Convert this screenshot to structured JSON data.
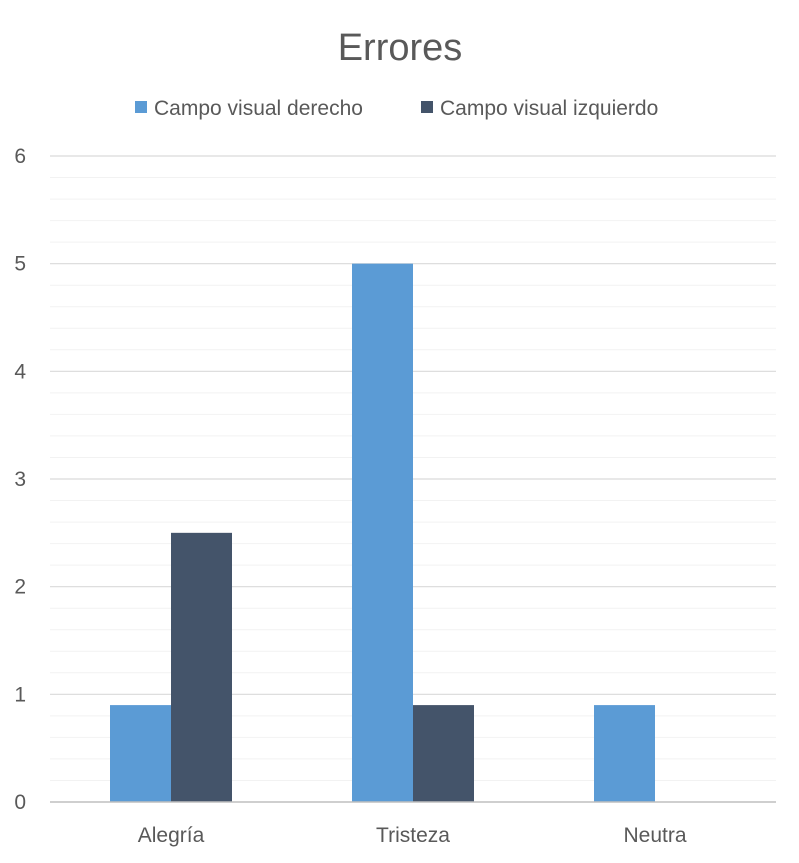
{
  "chart_data": {
    "type": "bar",
    "title": "Errores",
    "xlabel": "",
    "ylabel": "",
    "categories": [
      "Alegría",
      "Tristeza",
      "Neutra"
    ],
    "series": [
      {
        "name": "Campo visual derecho",
        "color": "#5B9BD5",
        "values": [
          0.9,
          5,
          0.9
        ]
      },
      {
        "name": "Campo visual izquierdo",
        "color": "#44546A",
        "values": [
          2.5,
          0.9,
          0
        ]
      }
    ],
    "ylim": [
      0,
      6
    ],
    "yticks": [
      "0",
      "1",
      "2",
      "3",
      "4",
      "5",
      "6"
    ],
    "major_tick_step": 1,
    "minor_tick_step": 0.2,
    "grid": true,
    "legend_position": "top"
  }
}
